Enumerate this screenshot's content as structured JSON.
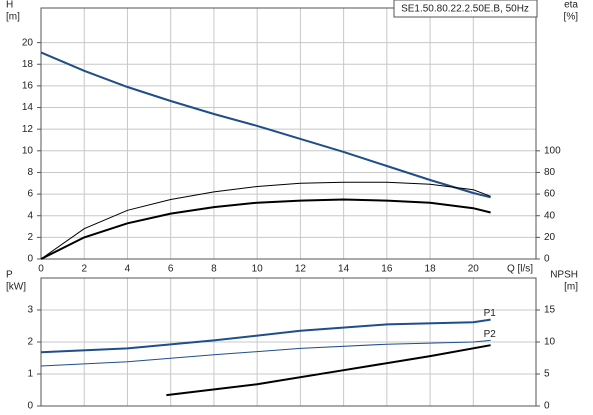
{
  "chart_data": [
    {
      "type": "line",
      "title": "SE1.50.80.22.2.50E.B, 50Hz",
      "ylabel": "H",
      "yunit": "[m]",
      "y2label": "eta",
      "y2unit": "[%]",
      "xlabel": "Q [l/s]",
      "xlim": [
        0,
        22.9
      ],
      "xticks": [
        0,
        2,
        4,
        6,
        8,
        10,
        12,
        14,
        16,
        18,
        20
      ],
      "xticklabels": true,
      "ylim": [
        0,
        23.2
      ],
      "yticks": [
        0,
        2,
        4,
        6,
        8,
        10,
        12,
        14,
        16,
        18,
        20
      ],
      "y2lim": [
        0,
        232
      ],
      "y2ticks": [
        0,
        20,
        40,
        60,
        80,
        100
      ],
      "grid": true,
      "series": [
        {
          "color": "#1f4e8c",
          "width": 2,
          "axis": "y",
          "x": [
            0,
            2,
            4,
            6,
            8,
            10,
            12,
            14,
            16,
            18,
            20,
            20.8
          ],
          "values": [
            19.1,
            17.4,
            15.9,
            14.6,
            13.4,
            12.3,
            11.1,
            9.9,
            8.6,
            7.3,
            6.1,
            5.7
          ]
        },
        {
          "color": "#000000",
          "width": 1,
          "axis": "y2",
          "x": [
            0,
            2,
            4,
            6,
            8,
            10,
            12,
            14,
            16,
            18,
            20,
            20.8
          ],
          "values": [
            0,
            28,
            45,
            55,
            62,
            67,
            70,
            71,
            71,
            69,
            64,
            58
          ]
        },
        {
          "color": "#000000",
          "width": 2,
          "axis": "y2",
          "x": [
            0,
            2,
            4,
            6,
            8,
            10,
            12,
            14,
            16,
            18,
            20,
            20.8
          ],
          "values": [
            0,
            20,
            33,
            42,
            48,
            52,
            54,
            55,
            54,
            52,
            47,
            43
          ]
        }
      ]
    },
    {
      "type": "line",
      "ylabel": "P",
      "yunit": "[kW]",
      "y2label": "NPSH",
      "y2unit": "[m]",
      "xlim": [
        0,
        22.9
      ],
      "xticks": [
        0,
        2,
        4,
        6,
        8,
        10,
        12,
        14,
        16,
        18,
        20
      ],
      "xticklabels": false,
      "ylim": [
        0,
        4
      ],
      "yticks": [
        0,
        1,
        2,
        3
      ],
      "y2lim": [
        0,
        20
      ],
      "y2ticks": [
        0,
        5,
        10,
        15
      ],
      "grid": true,
      "series": [
        {
          "name": "P1",
          "color": "#1f4e8c",
          "width": 2,
          "axis": "y",
          "x": [
            0,
            4,
            8,
            12,
            16,
            20,
            20.8
          ],
          "values": [
            1.68,
            1.8,
            2.05,
            2.35,
            2.55,
            2.62,
            2.7
          ]
        },
        {
          "name": "P2",
          "color": "#1f4e8c",
          "width": 1,
          "axis": "y",
          "x": [
            0,
            4,
            8,
            12,
            16,
            20,
            20.8
          ],
          "values": [
            1.25,
            1.38,
            1.6,
            1.8,
            1.93,
            2.0,
            2.05
          ]
        },
        {
          "color": "#000000",
          "width": 2,
          "axis": "y2",
          "x": [
            5.8,
            10,
            14,
            18,
            20.8
          ],
          "values": [
            1.7,
            3.4,
            5.6,
            7.8,
            9.5
          ]
        }
      ]
    }
  ]
}
